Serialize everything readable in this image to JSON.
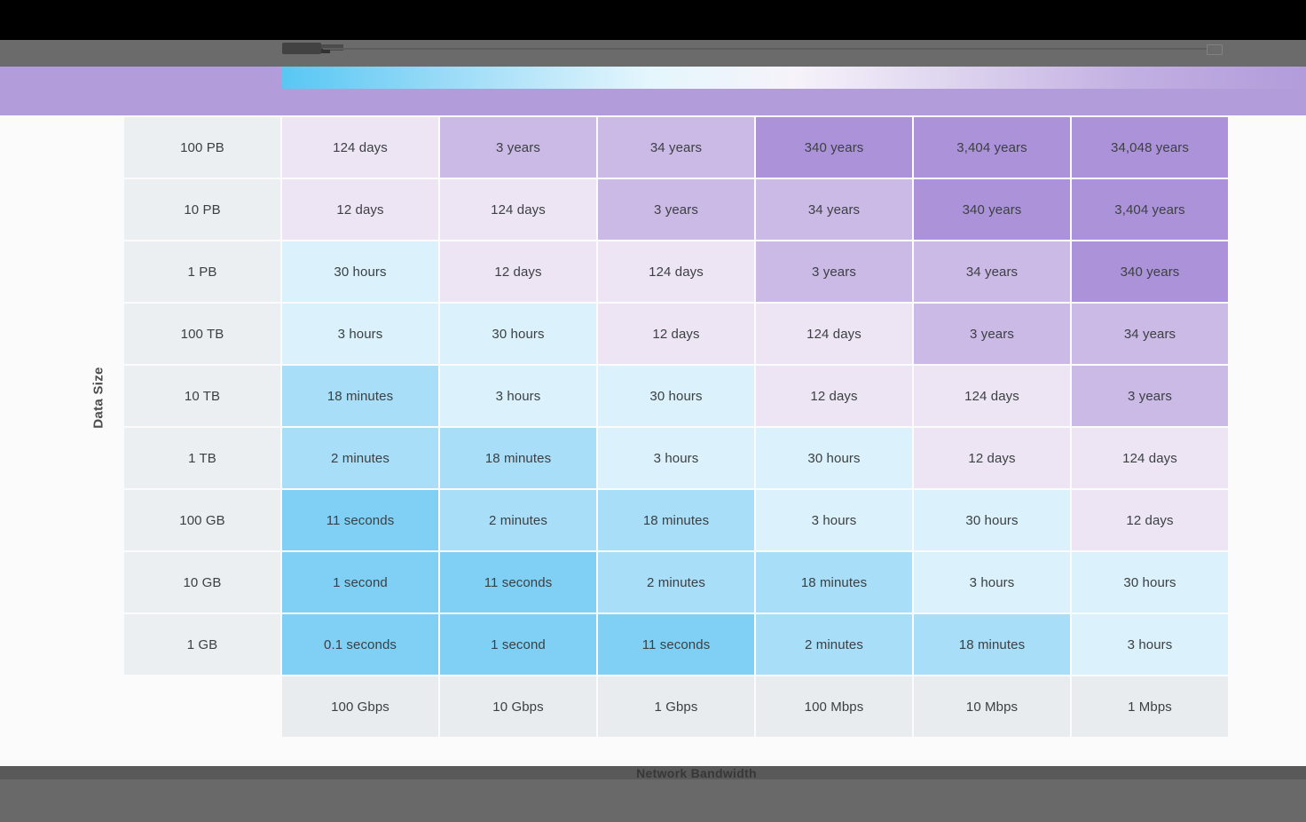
{
  "chrome": {
    "top_bar_color": "#000000",
    "toolbar_color": "#6b6b6b",
    "banner_color": "#b29cda",
    "footer_color": "#696969",
    "icons": [
      "logo-mark-icon",
      "expand-icon"
    ]
  },
  "legend": {
    "gradient_stops": [
      "#58c7f3 0%",
      "#9adbf7 16%",
      "#e5f6fd 36%",
      "#f6f3fa 50%",
      "#ddd3ee 66%",
      "#c2afe2 83%",
      "#b29cda 100%"
    ]
  },
  "axes": {
    "y_label": "Data Size",
    "x_label": "Network Bandwidth"
  },
  "chart_data": {
    "type": "heatmap",
    "title": "",
    "xlabel": "Network Bandwidth",
    "ylabel": "Data Size",
    "legend_position": "top",
    "grid": false,
    "row_labels": [
      "100 PB",
      "10 PB",
      "1 PB",
      "100 TB",
      "10 TB",
      "1 TB",
      "100 GB",
      "10 GB",
      "1 GB"
    ],
    "col_labels": [
      "100 Gbps",
      "10 Gbps",
      "1 Gbps",
      "100 Mbps",
      "10 Mbps",
      "1 Mbps"
    ],
    "cells": [
      [
        "124 days",
        "3 years",
        "34 years",
        "340 years",
        "3,404 years",
        "34,048 years"
      ],
      [
        "12 days",
        "124 days",
        "3 years",
        "34 years",
        "340 years",
        "3,404 years"
      ],
      [
        "30 hours",
        "12 days",
        "124 days",
        "3 years",
        "34 years",
        "340 years"
      ],
      [
        "3 hours",
        "30 hours",
        "12 days",
        "124 days",
        "3 years",
        "34 years"
      ],
      [
        "18 minutes",
        "3 hours",
        "30 hours",
        "12 days",
        "124 days",
        "3 years"
      ],
      [
        "2 minutes",
        "18 minutes",
        "3 hours",
        "30 hours",
        "12 days",
        "124 days"
      ],
      [
        "11 seconds",
        "2 minutes",
        "18 minutes",
        "3 hours",
        "30 hours",
        "12 days"
      ],
      [
        "1 second",
        "11 seconds",
        "2 minutes",
        "18 minutes",
        "3 hours",
        "30 hours"
      ],
      [
        "0.1 seconds",
        "1 second",
        "11 seconds",
        "2 minutes",
        "18 minutes",
        "3 hours"
      ]
    ],
    "colors": {
      "seconds": "#7fd0f4",
      "minutes": "#a8def7",
      "hours": "#dbf1fb",
      "days": "#ede5f4",
      "years_under_100": "#cbb9e6",
      "years_100_plus": "#ac93d9",
      "row_label_bg": "#eceff1",
      "speed_label_bg": "#e9ecee",
      "cell_text": "#3c4043"
    }
  }
}
